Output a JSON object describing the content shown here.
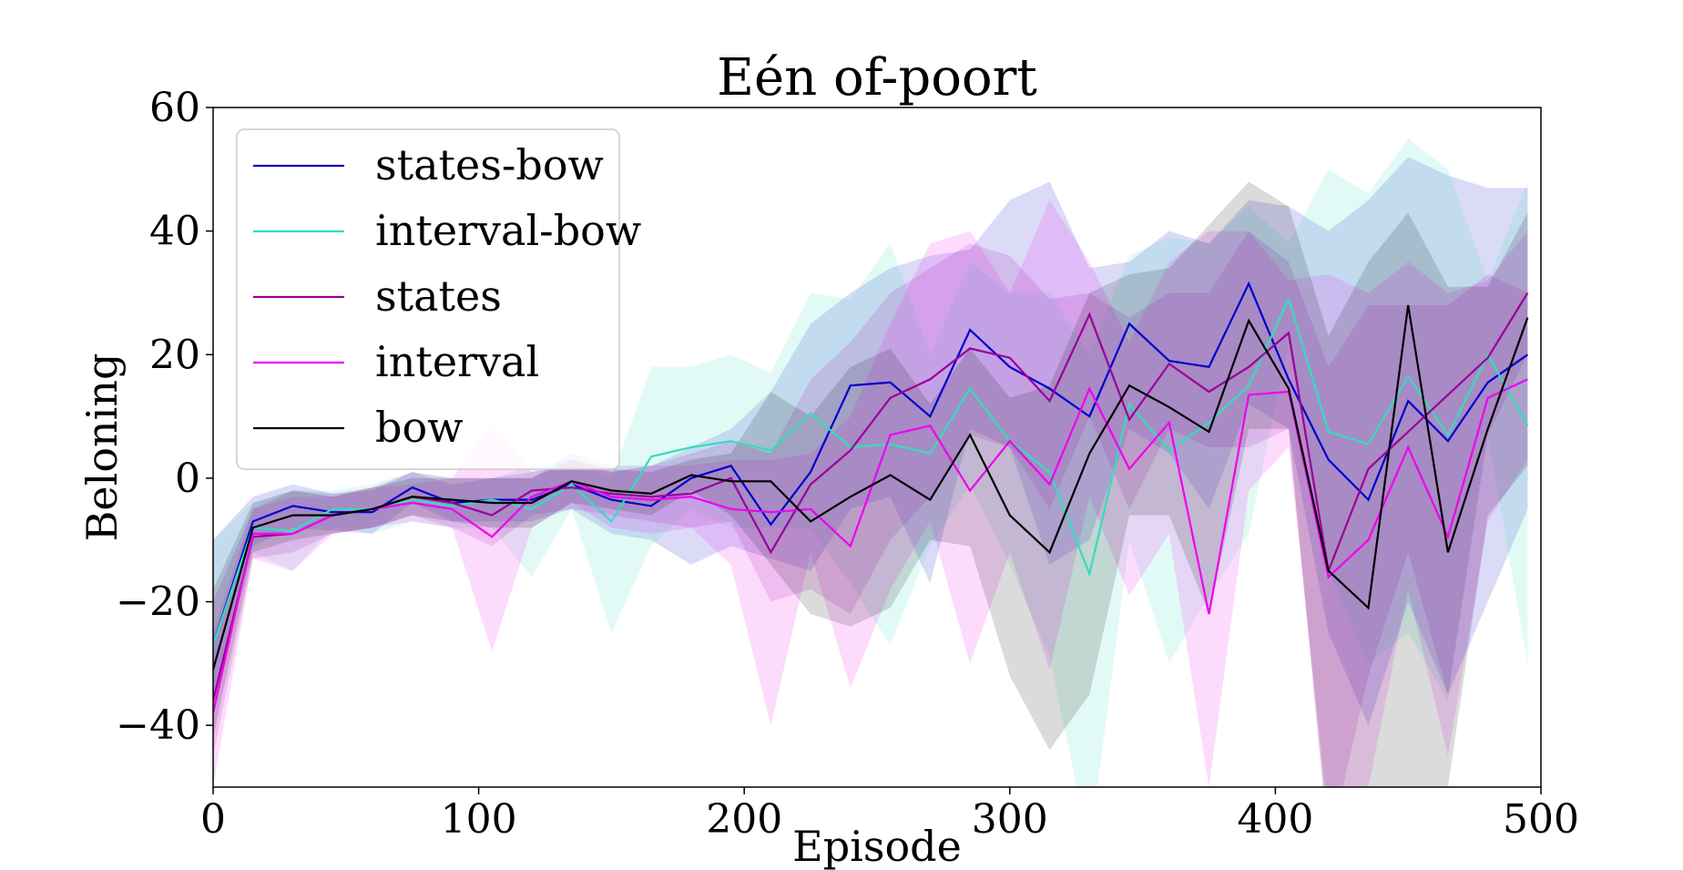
{
  "chart_data": {
    "type": "line",
    "title": "Eén of-poort",
    "xlabel": "Episode",
    "ylabel": "Beloning",
    "xlim": [
      0,
      500
    ],
    "ylim": [
      -50,
      60
    ],
    "xticks": [
      0,
      100,
      200,
      300,
      400,
      500
    ],
    "xtick_labels": [
      "0",
      "100",
      "200",
      "300",
      "400",
      "500"
    ],
    "yticks": [
      -40,
      -20,
      0,
      20,
      40,
      60
    ],
    "ytick_labels": [
      "−40",
      "−20",
      "0",
      "20",
      "40",
      "60"
    ],
    "grid": false,
    "legend_position": "top-left",
    "x": [
      0,
      15,
      30,
      45,
      60,
      75,
      90,
      105,
      120,
      135,
      150,
      165,
      180,
      195,
      210,
      225,
      240,
      255,
      270,
      285,
      300,
      315,
      330,
      345,
      360,
      375,
      390,
      405,
      420,
      435,
      450,
      465,
      480,
      495
    ],
    "series": [
      {
        "name": "states-bow",
        "color": "#0000cc",
        "values": [
          -27,
          -7,
          -4.5,
          -5.5,
          -5.5,
          -1.5,
          -4,
          -3.5,
          -3.5,
          -1,
          -3.5,
          -4.5,
          0,
          2,
          -7.5,
          1,
          15,
          15.5,
          10,
          24,
          18,
          14.5,
          10,
          25,
          19,
          18,
          31.5,
          16,
          3,
          -3.5,
          12.5,
          6,
          15.5,
          20
        ],
        "upper": [
          -10,
          -3,
          -1,
          -2.5,
          -2,
          1,
          -1,
          0,
          0,
          4,
          2,
          2,
          5,
          8,
          14,
          25,
          30,
          34,
          36,
          37,
          45,
          48,
          34,
          35,
          40,
          38,
          45,
          44,
          40,
          45,
          52,
          49,
          47,
          47
        ],
        "lower": [
          -37,
          -11,
          -8,
          -8.5,
          -9,
          -4,
          -7,
          -7,
          -7,
          -5,
          -9,
          -10,
          -14,
          -11,
          -13,
          -15,
          -5,
          -3,
          -17,
          8,
          5,
          -14,
          -10,
          8,
          4,
          -5,
          12,
          8,
          -25,
          -40,
          -20,
          -35,
          -20,
          -5
        ]
      },
      {
        "name": "interval-bow",
        "color": "#33ddbb",
        "values": [
          -27,
          -8,
          -8.5,
          -5,
          -5,
          -3.5,
          -4.5,
          -3.5,
          -5,
          -1,
          -7,
          3.5,
          5,
          6,
          4.5,
          10.5,
          5,
          5.5,
          4,
          14.5,
          6,
          1,
          -15.5,
          12,
          4.5,
          9,
          15,
          29,
          7.5,
          5.5,
          16.5,
          7,
          20,
          8.5
        ],
        "upper": [
          -10,
          -4,
          -2,
          -2,
          -1,
          1,
          0,
          0,
          2,
          3,
          0,
          18,
          18,
          20,
          17,
          30,
          29,
          38,
          20,
          35,
          30,
          30,
          20,
          36,
          39,
          38,
          44,
          38,
          50,
          46,
          55,
          50,
          32,
          48
        ],
        "lower": [
          -35,
          -12,
          -15,
          -8,
          -9,
          -7,
          -8,
          -8,
          -16,
          -5,
          -25,
          -11,
          -5,
          -8,
          -8,
          -8,
          -17,
          -27,
          -11,
          -1,
          -14,
          -29,
          -60,
          -10,
          -30,
          -19,
          -9,
          22,
          -15,
          -30,
          -25,
          -36,
          7,
          -30
        ]
      },
      {
        "name": "states",
        "color": "#990099",
        "values": [
          -36,
          -9.5,
          -9,
          -6,
          -5,
          -3,
          -4,
          -6,
          -2,
          -1.5,
          -2.5,
          -3,
          -2.5,
          0,
          -12,
          -1,
          4.5,
          13,
          16,
          21,
          19.5,
          12.5,
          26.5,
          9.5,
          18.5,
          14,
          18,
          23.5,
          -15,
          1.5,
          7.5,
          13.5,
          19.5,
          30
        ],
        "upper": [
          -20,
          -5,
          -2,
          -2.5,
          -1.5,
          1,
          0,
          0,
          1,
          2,
          1,
          2,
          4,
          6,
          4,
          16,
          22,
          30,
          34,
          38,
          36,
          29,
          30,
          26,
          30,
          30,
          40,
          35,
          18,
          28,
          28,
          28,
          33,
          30
        ],
        "lower": [
          -45,
          -13,
          -12,
          -9,
          -8,
          -6,
          -8,
          -11,
          -6,
          -5,
          -6,
          -7,
          -8,
          -7,
          -20,
          -18,
          -22,
          -10,
          -3,
          7,
          5,
          -5,
          10,
          -5,
          8,
          5,
          5,
          8,
          -60,
          -32,
          -12,
          -35,
          7,
          20
        ]
      },
      {
        "name": "interval",
        "color": "#ee00ee",
        "values": [
          -38,
          -9,
          -9,
          -6,
          -5,
          -4,
          -5,
          -9.5,
          -3,
          -0.5,
          -3,
          -3.5,
          -3,
          -5,
          -5.5,
          -5,
          -11,
          7,
          8.5,
          -2,
          6,
          -1,
          14.5,
          1.5,
          9,
          -22,
          13.5,
          14,
          -16,
          -10,
          5,
          -9.5,
          13,
          16
        ],
        "upper": [
          -25,
          -5,
          -3,
          -3,
          -1.5,
          -1,
          0,
          9,
          1,
          3,
          1,
          2,
          2,
          3,
          3,
          4,
          10,
          25,
          38,
          40,
          30,
          45,
          35,
          22,
          35,
          40,
          40,
          32,
          33,
          30,
          35,
          30,
          32,
          40
        ],
        "lower": [
          -50,
          -13,
          -15,
          -9,
          -8,
          -7,
          -8,
          -28,
          -8,
          -4,
          -8,
          -9,
          -8,
          -14,
          -40,
          -12,
          -34,
          -18,
          -7,
          -30,
          -12,
          -31,
          -3,
          -19,
          -9,
          -50,
          -2,
          5,
          -55,
          -50,
          -18,
          -45,
          -7,
          3
        ]
      },
      {
        "name": "bow",
        "color": "#000000",
        "values": [
          -31,
          -8,
          -6,
          -6,
          -5,
          -3,
          -3.5,
          -4,
          -4,
          -0.5,
          -2,
          -2.5,
          0.5,
          -0.5,
          -0.5,
          -7,
          -3,
          0.5,
          -3.5,
          7,
          -6,
          -12,
          4,
          15,
          11.5,
          7.5,
          25.5,
          14.5,
          -15,
          -21,
          28,
          -12,
          8,
          26
        ],
        "upper": [
          -18,
          -4,
          -2,
          -3,
          -1.5,
          0,
          0,
          0,
          0,
          3,
          1.5,
          1,
          3,
          4,
          14,
          10,
          18,
          21,
          12,
          21,
          13,
          15,
          30,
          33,
          34,
          41,
          48,
          44,
          23,
          35,
          43,
          31,
          31,
          43
        ],
        "lower": [
          -42,
          -12,
          -10,
          -9,
          -8,
          -6,
          -7,
          -8,
          -8,
          -4,
          -5,
          -6,
          -2,
          -6,
          -14,
          -22,
          -24,
          -21,
          -10,
          -11,
          -32,
          -44,
          -35,
          -6,
          -6,
          -22,
          8,
          8,
          -58,
          -60,
          -55,
          -50,
          -6,
          2
        ]
      }
    ]
  }
}
